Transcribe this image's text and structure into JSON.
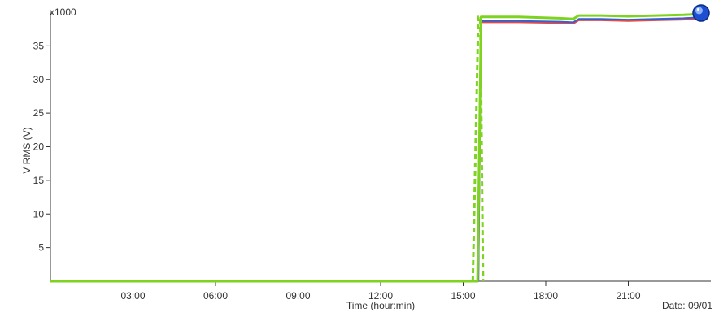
{
  "chart_data": {
    "type": "line",
    "y_multiplier": "x1000",
    "xlabel": "Time (hour:min)",
    "ylabel": "V RMS (V)",
    "date_label": "Date: 09/01",
    "x_unit": "hours",
    "xlim": [
      0,
      24
    ],
    "ylim": [
      0,
      40
    ],
    "x_ticks": [
      {
        "value": 3,
        "label": "03:00"
      },
      {
        "value": 6,
        "label": "06:00"
      },
      {
        "value": 9,
        "label": "09:00"
      },
      {
        "value": 12,
        "label": "12:00"
      },
      {
        "value": 15,
        "label": "15:00"
      },
      {
        "value": 18,
        "label": "18:00"
      },
      {
        "value": 21,
        "label": "21:00"
      }
    ],
    "y_ticks": [
      {
        "value": 5,
        "label": "5"
      },
      {
        "value": 10,
        "label": "10"
      },
      {
        "value": 15,
        "label": "15"
      },
      {
        "value": 20,
        "label": "20"
      },
      {
        "value": 25,
        "label": "25"
      },
      {
        "value": 30,
        "label": "30"
      },
      {
        "value": 35,
        "label": "35"
      }
    ],
    "grid": false,
    "legend": "none",
    "series": [
      {
        "color": "#e04a4a",
        "width": 2,
        "dash": "",
        "points": [
          [
            0,
            0
          ],
          [
            15.55,
            0
          ],
          [
            15.65,
            38.5
          ],
          [
            17,
            38.5
          ],
          [
            18.5,
            38.4
          ],
          [
            19,
            38.3
          ],
          [
            19.2,
            38.8
          ],
          [
            20,
            38.8
          ],
          [
            21,
            38.7
          ],
          [
            22,
            38.8
          ],
          [
            23,
            38.9
          ],
          [
            23.9,
            39.1
          ]
        ]
      },
      {
        "color": "#3a5fcd",
        "width": 2,
        "dash": "",
        "points": [
          [
            0,
            0
          ],
          [
            15.55,
            0
          ],
          [
            15.65,
            38.7
          ],
          [
            17,
            38.7
          ],
          [
            18.5,
            38.6
          ],
          [
            19,
            38.5
          ],
          [
            19.2,
            39.0
          ],
          [
            20,
            39.0
          ],
          [
            21,
            38.9
          ],
          [
            22,
            39.0
          ],
          [
            23,
            39.1
          ],
          [
            23.9,
            39.3
          ]
        ]
      },
      {
        "color": "#7ed321",
        "width": 3,
        "dash": "",
        "points": [
          [
            0,
            0
          ],
          [
            15.52,
            0
          ],
          [
            15.65,
            39.3
          ],
          [
            17,
            39.3
          ],
          [
            18.5,
            39.1
          ],
          [
            19,
            39.0
          ],
          [
            19.2,
            39.5
          ],
          [
            20,
            39.5
          ],
          [
            21,
            39.4
          ],
          [
            22,
            39.5
          ],
          [
            23,
            39.6
          ],
          [
            23.9,
            39.8
          ]
        ]
      },
      {
        "color": "#7ed321",
        "width": 3,
        "dash": "6,4",
        "points": [
          [
            15.35,
            0
          ],
          [
            15.55,
            39.3
          ],
          [
            15.62,
            39.3
          ],
          [
            15.72,
            0
          ]
        ]
      }
    ]
  },
  "zoom_icon": {
    "name": "zoom-icon",
    "color": "#1f4fd1"
  }
}
